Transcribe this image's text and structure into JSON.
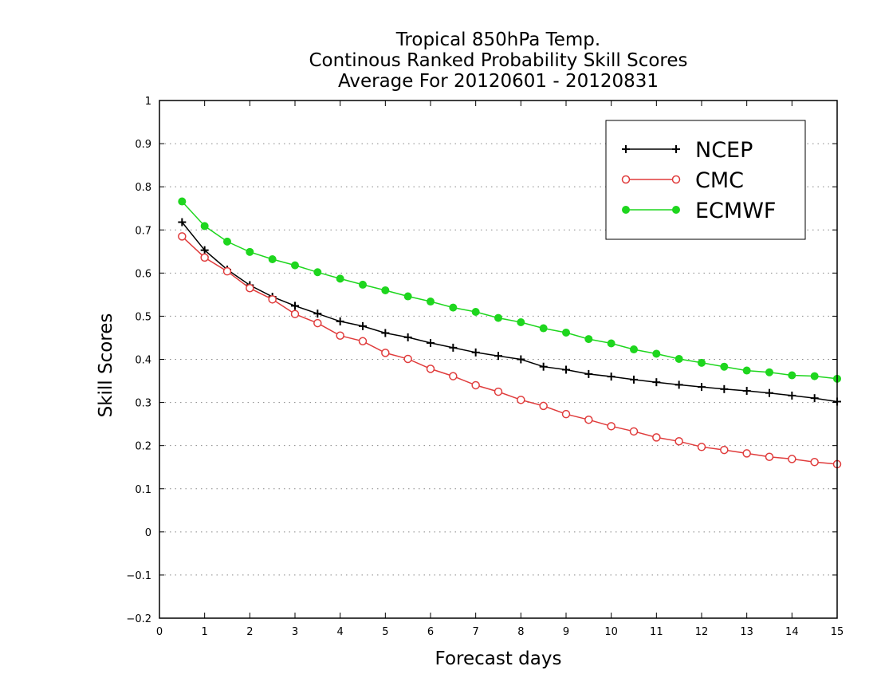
{
  "chart_data": {
    "type": "line",
    "title": [
      "Tropical 850hPa Temp.",
      "Continous Ranked Probability Skill Scores",
      "Average For 20120601 - 20120831"
    ],
    "xlabel": "Forecast days",
    "ylabel": "Skill Scores",
    "xlim": [
      0,
      15
    ],
    "ylim": [
      -0.2,
      1
    ],
    "xticks": [
      "0",
      "1",
      "2",
      "3",
      "4",
      "5",
      "6",
      "7",
      "8",
      "9",
      "10",
      "11",
      "12",
      "13",
      "14",
      "15"
    ],
    "yticks": [
      "−0.2",
      "−0.1",
      "0",
      "0.1",
      "0.2",
      "0.3",
      "0.4",
      "0.5",
      "0.6",
      "0.7",
      "0.8",
      "0.9",
      "1"
    ],
    "grid": "horizontal dotted",
    "legend_position": "top-right",
    "x": [
      0.5,
      1,
      1.5,
      2,
      2.5,
      3,
      3.5,
      4,
      4.5,
      5,
      5.5,
      6,
      6.5,
      7,
      7.5,
      8,
      8.5,
      9,
      9.5,
      10,
      10.5,
      11,
      11.5,
      12,
      12.5,
      13,
      13.5,
      14,
      14.5,
      15
    ],
    "series": [
      {
        "name": "NCEP",
        "color": "#000000",
        "marker": "plus",
        "values": [
          0.718,
          0.653,
          0.608,
          0.572,
          0.545,
          0.524,
          0.506,
          0.488,
          0.477,
          0.461,
          0.451,
          0.438,
          0.427,
          0.416,
          0.408,
          0.4,
          0.383,
          0.376,
          0.366,
          0.36,
          0.353,
          0.347,
          0.341,
          0.336,
          0.331,
          0.327,
          0.322,
          0.316,
          0.31,
          0.302
        ]
      },
      {
        "name": "CMC",
        "color": "#e03c3c",
        "marker": "open-circle",
        "values": [
          0.685,
          0.636,
          0.604,
          0.565,
          0.539,
          0.505,
          0.484,
          0.455,
          0.442,
          0.415,
          0.401,
          0.378,
          0.361,
          0.34,
          0.325,
          0.306,
          0.292,
          0.273,
          0.26,
          0.245,
          0.233,
          0.219,
          0.21,
          0.197,
          0.19,
          0.182,
          0.174,
          0.169,
          0.162,
          0.157
        ]
      },
      {
        "name": "ECMWF",
        "color": "#1ed61e",
        "marker": "filled-circle",
        "values": [
          0.766,
          0.709,
          0.673,
          0.649,
          0.632,
          0.618,
          0.602,
          0.587,
          0.573,
          0.56,
          0.546,
          0.534,
          0.52,
          0.51,
          0.496,
          0.486,
          0.472,
          0.462,
          0.447,
          0.437,
          0.423,
          0.413,
          0.401,
          0.392,
          0.383,
          0.374,
          0.37,
          0.363,
          0.361,
          0.355
        ]
      }
    ]
  }
}
